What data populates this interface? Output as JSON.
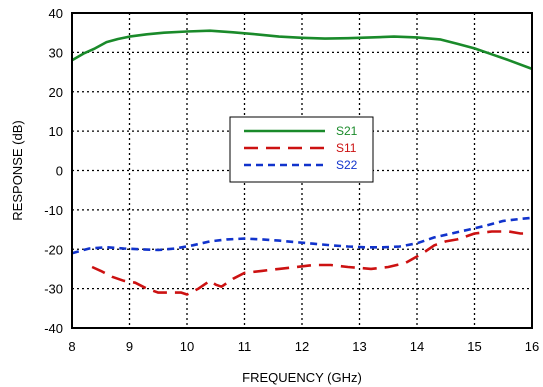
{
  "chart_data": {
    "type": "line",
    "title": "",
    "xlabel": "FREQUENCY (GHz)",
    "ylabel": "RESPONSE (dB)",
    "xlim": [
      8,
      16
    ],
    "ylim": [
      -40,
      40
    ],
    "xticks": [
      8,
      9,
      10,
      11,
      12,
      13,
      14,
      15,
      16
    ],
    "yticks": [
      -40,
      -30,
      -20,
      -10,
      0,
      10,
      20,
      30,
      40
    ],
    "grid": true,
    "legend_position": "center",
    "series": [
      {
        "name": "S21",
        "color": "#1a8a2a",
        "dash": "solid",
        "x": [
          8.0,
          8.2,
          8.4,
          8.6,
          8.8,
          9.0,
          9.3,
          9.6,
          10.0,
          10.4,
          10.8,
          11.2,
          11.6,
          12.0,
          12.4,
          12.8,
          13.2,
          13.6,
          14.0,
          14.4,
          14.7,
          15.0,
          15.3,
          15.6,
          16.0
        ],
        "y": [
          28.0,
          29.7,
          31.0,
          32.6,
          33.4,
          34.0,
          34.6,
          35.0,
          35.3,
          35.5,
          35.1,
          34.6,
          34.0,
          33.7,
          33.5,
          33.6,
          33.8,
          34.0,
          33.8,
          33.3,
          32.2,
          31.0,
          29.5,
          28.0,
          25.8
        ]
      },
      {
        "name": "S11",
        "color": "#cc1111",
        "dash": "long",
        "x": [
          8.35,
          8.5,
          8.7,
          8.9,
          9.1,
          9.3,
          9.5,
          9.7,
          9.9,
          10.0,
          10.2,
          10.4,
          10.5,
          10.6,
          10.8,
          11.0,
          11.3,
          11.6,
          11.9,
          12.2,
          12.5,
          12.8,
          13.2,
          13.5,
          13.8,
          14.1,
          14.3,
          14.5,
          14.7,
          15.0,
          15.3,
          15.6,
          15.8,
          16.0
        ],
        "y": [
          -24.5,
          -25.5,
          -27.0,
          -28.0,
          -28.5,
          -30.0,
          -31.0,
          -31.0,
          -31.0,
          -31.5,
          -30.0,
          -28.0,
          -29.0,
          -29.5,
          -27.5,
          -26.0,
          -25.5,
          -25.0,
          -24.5,
          -24.0,
          -24.0,
          -24.5,
          -25.0,
          -24.5,
          -23.5,
          -21.0,
          -19.0,
          -18.0,
          -17.5,
          -16.0,
          -15.5,
          -15.5,
          -16.0,
          -16.0
        ]
      },
      {
        "name": "S22",
        "color": "#1133cc",
        "dash": "short",
        "x": [
          8.0,
          8.3,
          8.6,
          8.9,
          9.2,
          9.5,
          9.8,
          10.1,
          10.4,
          10.7,
          11.0,
          11.3,
          11.6,
          11.9,
          12.2,
          12.5,
          12.8,
          13.1,
          13.4,
          13.7,
          14.0,
          14.3,
          14.6,
          14.9,
          15.2,
          15.5,
          15.8,
          16.0
        ],
        "y": [
          -21.0,
          -19.8,
          -19.5,
          -19.8,
          -20.0,
          -20.2,
          -19.8,
          -19.0,
          -18.0,
          -17.5,
          -17.3,
          -17.5,
          -17.8,
          -18.2,
          -18.6,
          -19.0,
          -19.3,
          -19.5,
          -19.5,
          -19.3,
          -18.5,
          -17.0,
          -16.0,
          -15.0,
          -14.0,
          -12.8,
          -12.3,
          -12.0
        ]
      }
    ]
  }
}
